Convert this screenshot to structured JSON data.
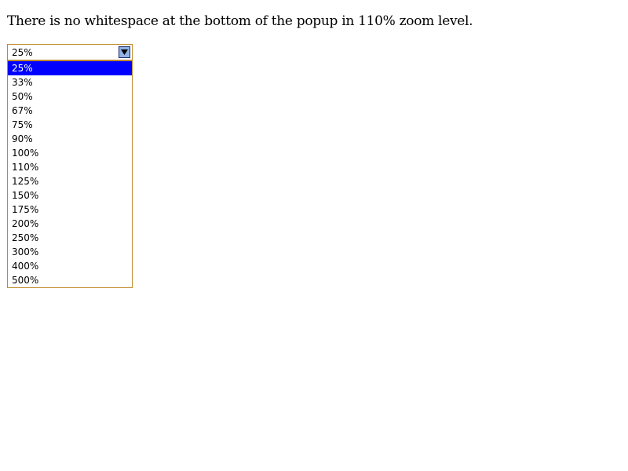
{
  "heading": "There is no whitespace at the bottom of the popup in 110% zoom level.",
  "zoom_select": {
    "value": "25%",
    "button_icon": "chevron-down-icon",
    "options": [
      "25%",
      "33%",
      "50%",
      "67%",
      "75%",
      "90%",
      "100%",
      "110%",
      "125%",
      "150%",
      "175%",
      "200%",
      "250%",
      "300%",
      "400%",
      "500%"
    ],
    "selected_index": 0
  },
  "colors": {
    "border": "#c08a2b",
    "highlight": "#0000ff",
    "button": "#8fb1e6"
  }
}
